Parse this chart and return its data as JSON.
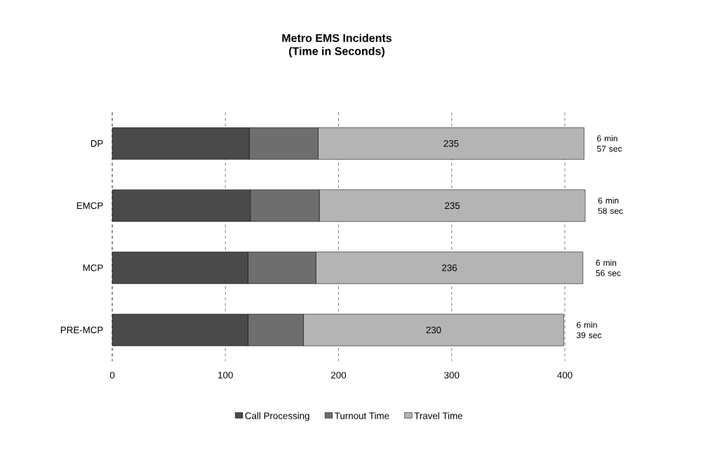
{
  "chart_data": {
    "type": "bar",
    "orientation": "horizontal",
    "stacked": true,
    "title": "Metro EMS Incidents",
    "subtitle": "(Time in Seconds)",
    "categories": [
      "DP",
      "EMCP",
      "MCP",
      "PRE-MCP"
    ],
    "series": [
      {
        "name": "Call Processing",
        "color": "#4a4a4a",
        "values": [
          121,
          122,
          120,
          120
        ]
      },
      {
        "name": "Turnout Time",
        "color": "#6e6e6e",
        "values": [
          61,
          61,
          60,
          49
        ]
      },
      {
        "name": "Travel Time",
        "color": "#b4b4b4",
        "values": [
          235,
          235,
          236,
          230
        ],
        "value_labels": [
          "235",
          "235",
          "236",
          "230"
        ]
      }
    ],
    "totals": [
      "6 min 57 sec",
      "6 min 58 sec",
      "6 min 56 sec",
      "6 min 39 sec"
    ],
    "xlim": [
      0,
      420
    ],
    "xticks": [
      0,
      100,
      200,
      300,
      400
    ],
    "grid": "x",
    "legend": "bottom"
  }
}
